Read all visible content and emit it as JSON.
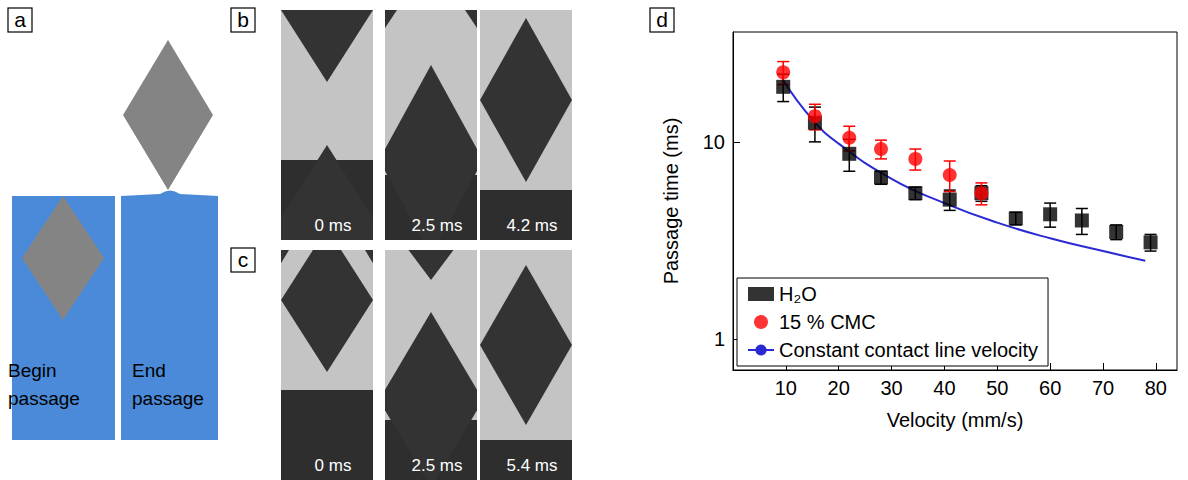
{
  "panel_a": {
    "panel_label": "a",
    "labels": [
      "Begin passage",
      "End passage"
    ]
  },
  "panel_b": {
    "panel_label": "b",
    "times": [
      "0 ms",
      "2.5 ms",
      "4.2 ms"
    ]
  },
  "panel_c": {
    "panel_label": "c",
    "times": [
      "0 ms",
      "2.5 ms",
      "5.4 ms"
    ]
  },
  "chart_data": {
    "panel_label": "d",
    "type": "scatter",
    "x_label": "Velocity (mm/s)",
    "y_label": "Passage time (ms)",
    "log": "y",
    "grid": false,
    "legend": "bottom-left",
    "xlim": [
      0,
      84
    ],
    "ylim": [
      0.7,
      36
    ],
    "xticks": [
      10,
      20,
      30,
      40,
      50,
      60,
      70,
      80
    ],
    "yticks": [
      1,
      10
    ],
    "series": [
      {
        "name": "H₂O",
        "color": "#000000",
        "marker": "square",
        "x": [
          9.5,
          15.5,
          22,
          28,
          34.5,
          41,
          47,
          53.5,
          60,
          66,
          72.5,
          79
        ],
        "values": [
          19,
          12.5,
          8.7,
          6.6,
          5.5,
          5.1,
          5.5,
          4.1,
          4.3,
          4.0,
          3.5,
          3.1
        ],
        "errors": [
          3,
          2.5,
          1.6,
          0.5,
          0.4,
          0.6,
          0.5,
          0.3,
          0.6,
          0.6,
          0.3,
          0.3
        ]
      },
      {
        "name": "15 % CMC",
        "color": "#ff0000",
        "marker": "circle",
        "x": [
          9.5,
          15.5,
          22,
          28,
          34.5,
          41,
          47
        ],
        "values": [
          22.5,
          13.5,
          10.5,
          9.2,
          8.2,
          6.8,
          5.5
        ],
        "errors": [
          3,
          2,
          1.5,
          1,
          1,
          1.2,
          0.7
        ]
      },
      {
        "name": "Constant contact line velocity",
        "type": "line",
        "color": "#2a2ad4",
        "marker": "none",
        "line_style": "solid",
        "x": [
          9.5,
          15,
          20,
          30,
          40,
          50,
          60,
          70,
          78
        ],
        "values": [
          20.5,
          13,
          9.8,
          6.5,
          4.9,
          3.9,
          3.25,
          2.8,
          2.5
        ]
      }
    ]
  }
}
